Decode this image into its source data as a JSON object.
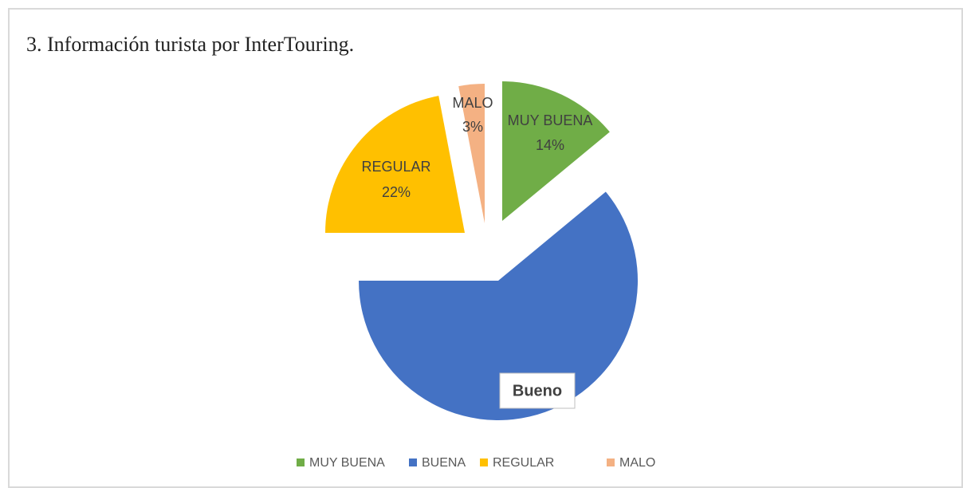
{
  "chart_data": {
    "type": "pie",
    "title": "3. Información turista por InterTouring.",
    "categories": [
      "MUY BUENA",
      "BUENA",
      "REGULAR",
      "MALO"
    ],
    "values": [
      14,
      61,
      22,
      3
    ],
    "value_labels": [
      "14%",
      null,
      "22%",
      "3%"
    ],
    "colors": [
      "#70ad47",
      "#4472c4",
      "#ffc000",
      "#f4b183"
    ],
    "annotation": "Bueno",
    "legend": "bottom"
  }
}
